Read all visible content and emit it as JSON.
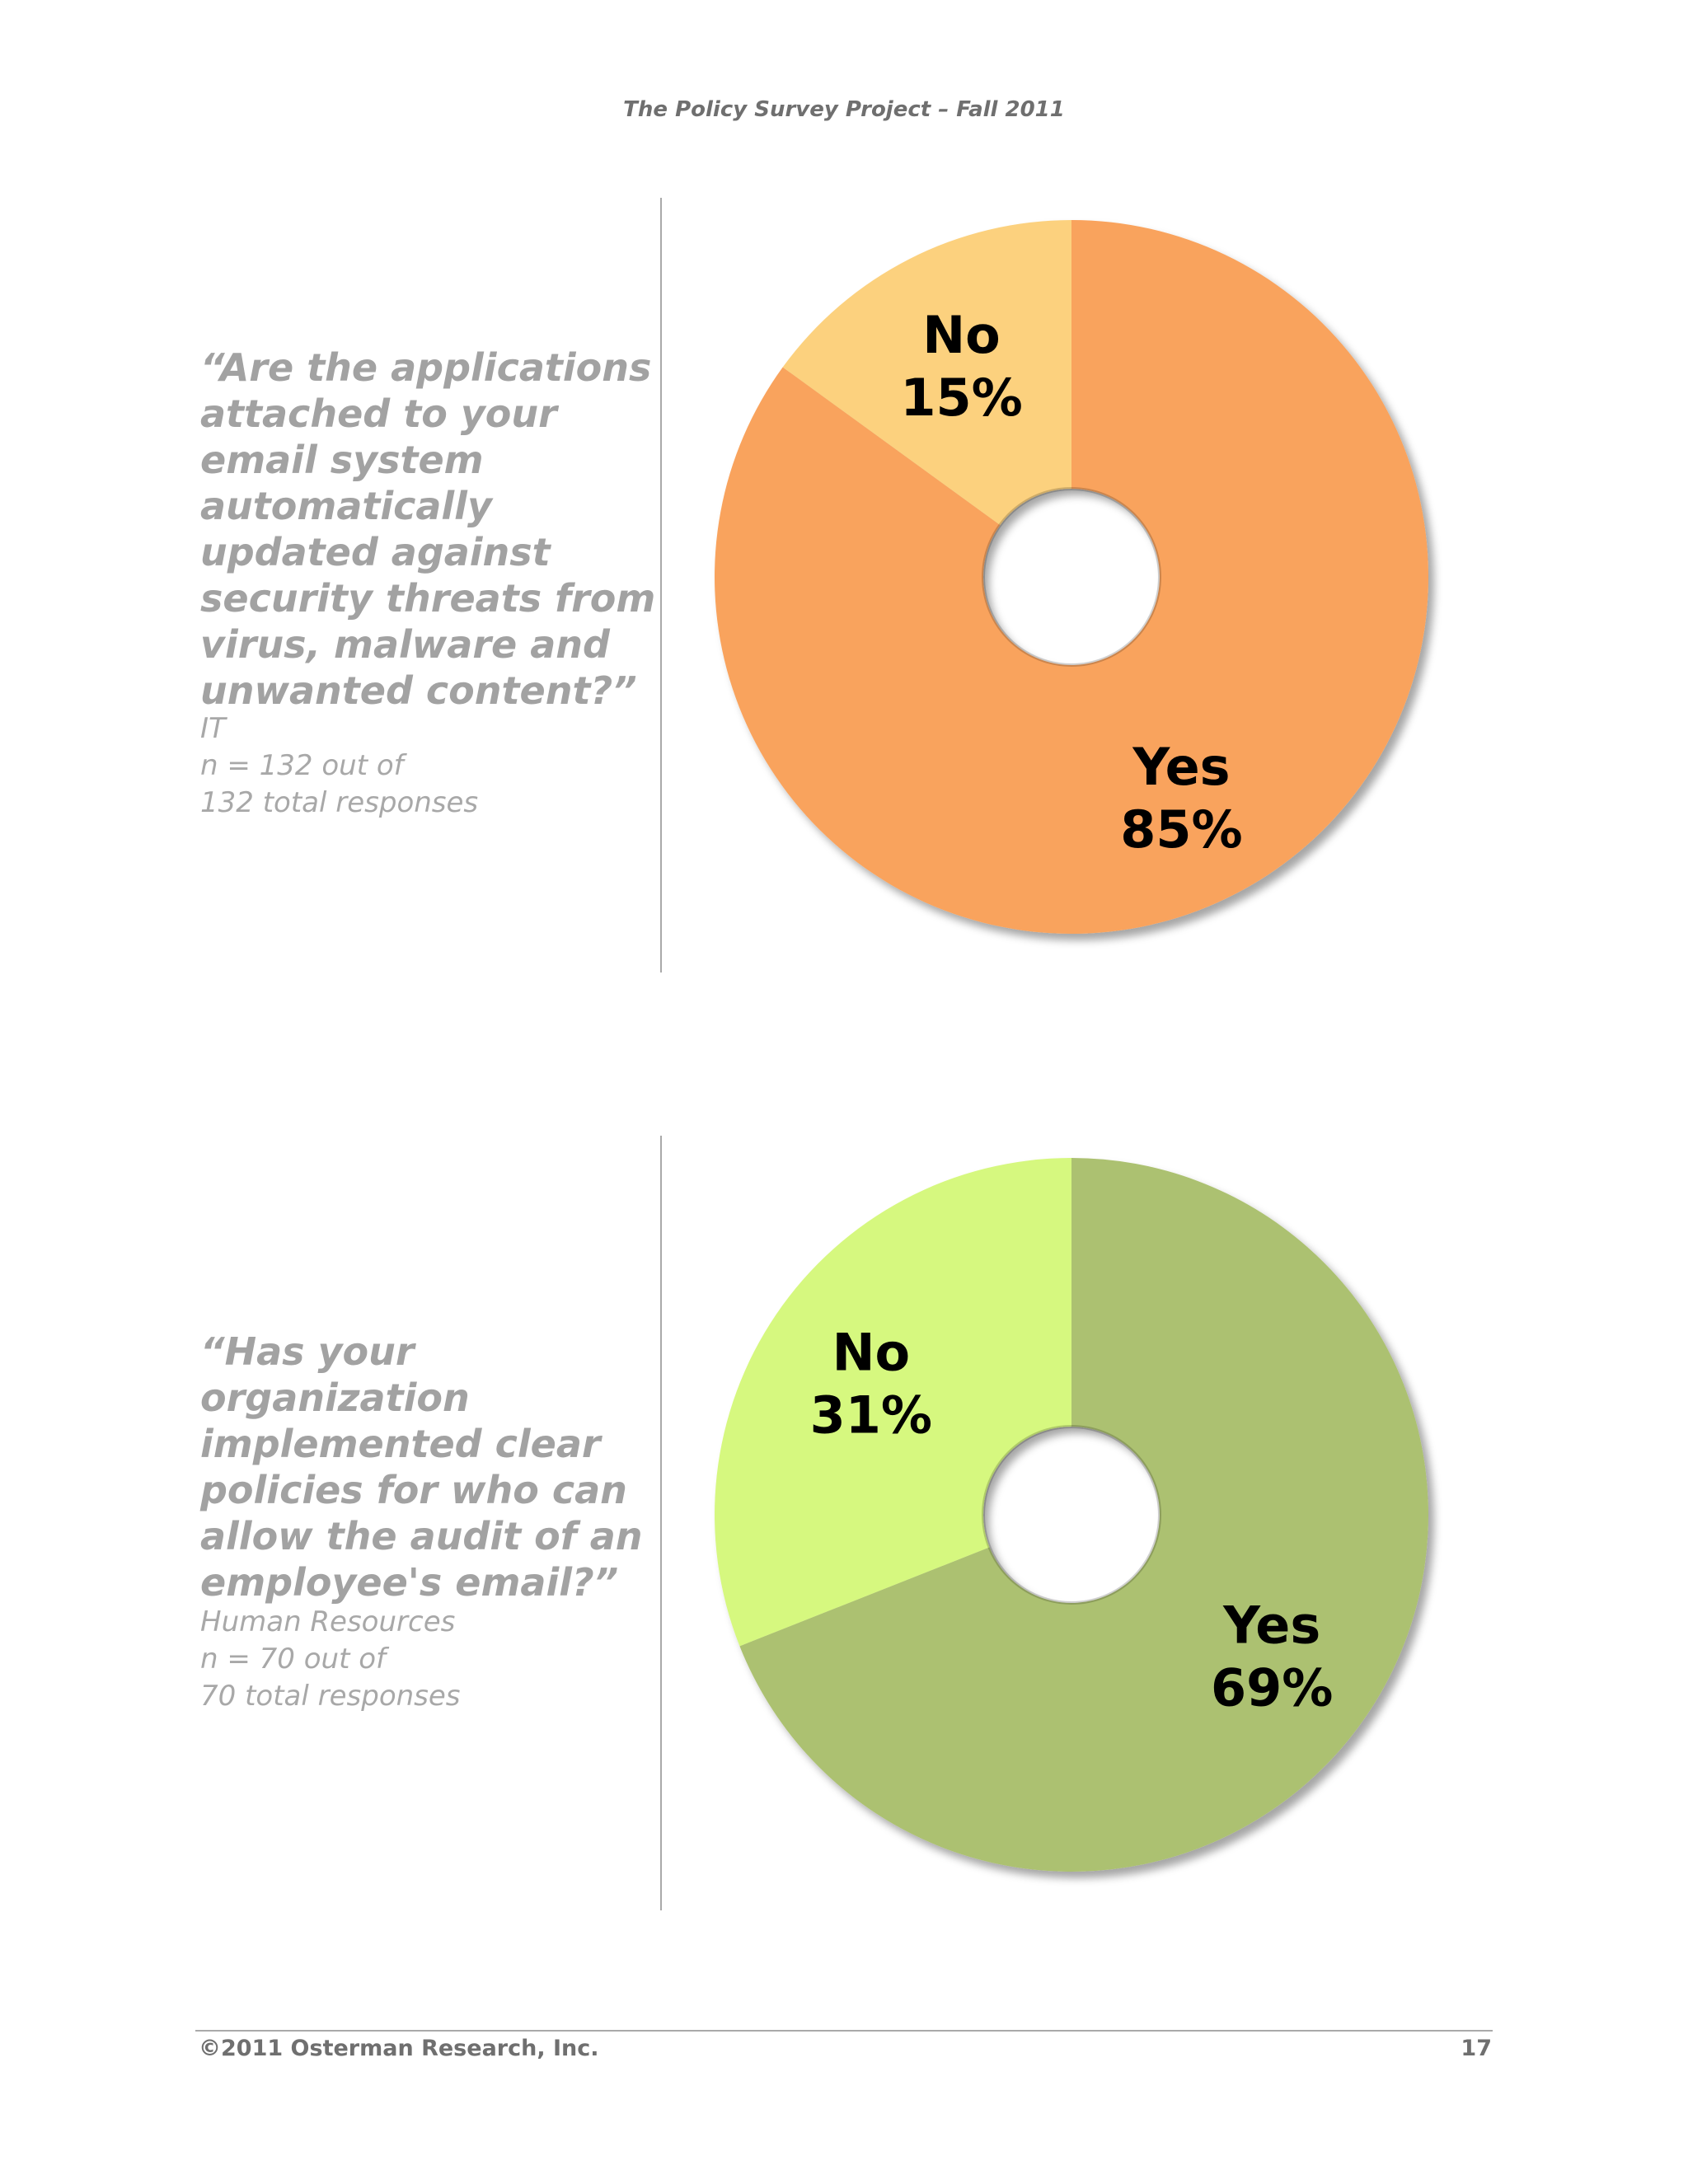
{
  "header": {
    "title": "The Policy Survey Project – Fall 2011"
  },
  "footer": {
    "copyright": "©2011 Osterman Research, Inc.",
    "page_number": "17"
  },
  "charts": [
    {
      "question": "“Are the applications attached to your email system automatically updated against security threats from virus, malware and unwanted content?”",
      "meta": [
        "IT",
        "n = 132 out of",
        "132 total responses"
      ]
    },
    {
      "question": "“Has your organization implemented clear policies for who can allow the audit of an employee's email?”",
      "meta": [
        "Human Resources",
        "n = 70 out of",
        "70 total responses"
      ]
    }
  ],
  "chart_data": [
    {
      "type": "pie",
      "style": "donut",
      "slices": [
        {
          "name": "Yes",
          "value": 85,
          "label": "85%",
          "color": "#f9a35d"
        },
        {
          "name": "No",
          "value": 15,
          "label": "15%",
          "color": "#fcd17e"
        }
      ]
    },
    {
      "type": "pie",
      "style": "donut",
      "slices": [
        {
          "name": "Yes",
          "value": 69,
          "label": "69%",
          "color": "#acc171"
        },
        {
          "name": "No",
          "value": 31,
          "label": "31%",
          "color": "#d6f87f"
        }
      ]
    }
  ]
}
